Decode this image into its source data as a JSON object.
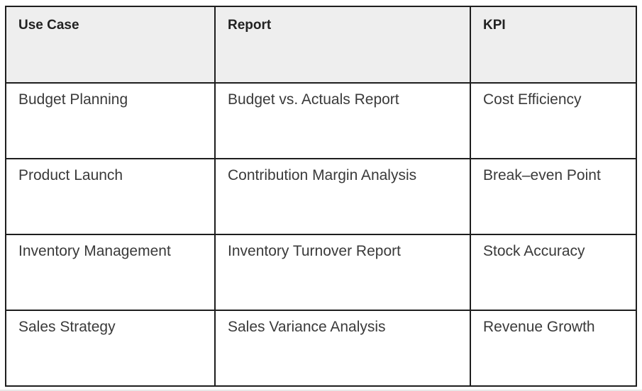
{
  "table": {
    "headers": [
      "Use Case",
      "Report",
      "KPI"
    ],
    "rows": [
      [
        "Budget Planning",
        "Budget vs. Actuals Report",
        "Cost Efficiency"
      ],
      [
        "Product Launch",
        "Contribution Margin Analysis",
        "Break–even Point"
      ],
      [
        "Inventory Management",
        "Inventory Turnover Report",
        "Stock Accuracy"
      ],
      [
        "Sales Strategy",
        "Sales Variance Analysis",
        "Revenue Growth"
      ]
    ],
    "colors": {
      "header_background": "#eeeeee",
      "body_background": "#ffffff",
      "border": "#1e1e1e",
      "header_text": "#222222",
      "cell_text": "#3a3a3a",
      "page_background": "#ffffff",
      "bottom_edge": "#e8e8e8"
    }
  }
}
